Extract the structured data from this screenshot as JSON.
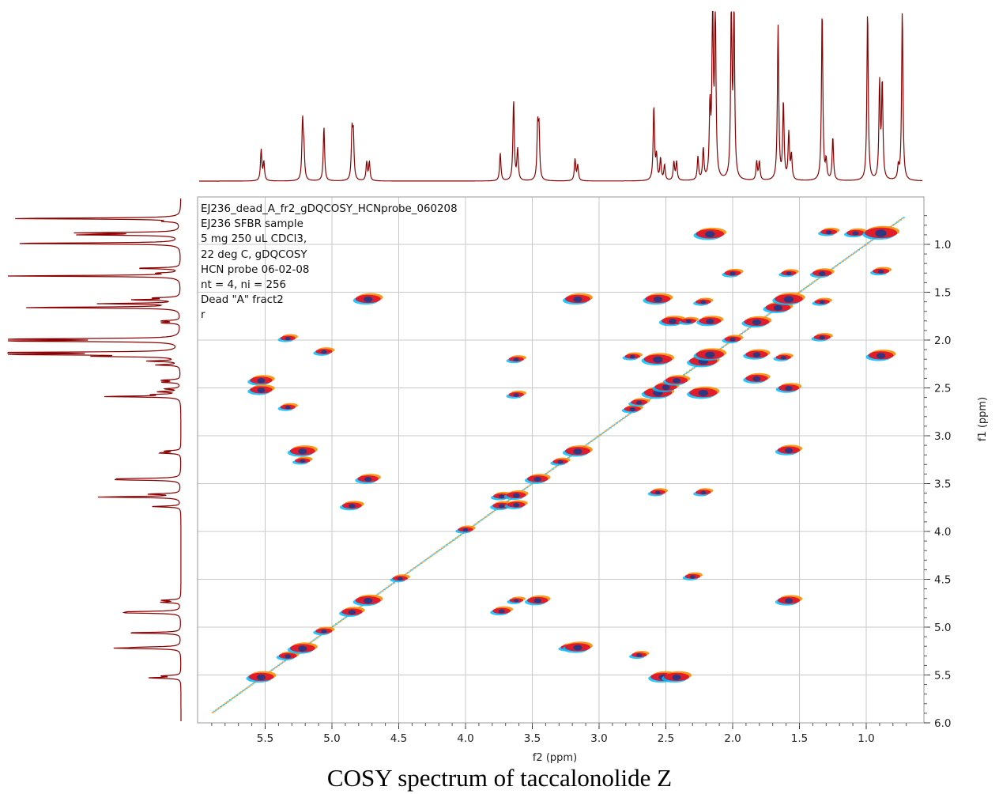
{
  "caption": "COSY spectrum of taccalonolide Z",
  "info_lines": [
    "EJ236_dead_A_fr2_gDQCOSY_HCNprobe_060208",
    "EJ236 SFBR sample",
    "5 mg 250 uL CDCl3,",
    "22 deg C, gDQCOSY",
    "HCN probe 06-02-08",
    "nt = 4, ni = 256",
    "Dead \"A\" fract2",
    "r"
  ],
  "colors": {
    "trace": "#8b0000",
    "grid": "#c8c8c8",
    "peak_cyan": "#00bfff",
    "peak_orange": "#ff8c00",
    "peak_red": "#e0102a",
    "peak_blue": "#1e3a8a"
  },
  "chart_data": {
    "type": "heatmap",
    "title": "",
    "xlabel": "f2 (ppm)",
    "ylabel": "f1 (ppm)",
    "xlim": [
      5.9,
      0.65
    ],
    "ylim": [
      5.95,
      0.65
    ],
    "x_reversed": true,
    "y_increases_down": true,
    "x_ticks": [
      "5.5",
      "5.0",
      "4.5",
      "4.0",
      "3.5",
      "3.0",
      "2.5",
      "2.0",
      "1.5",
      "1.0"
    ],
    "y_ticks": [
      "1.0",
      "1.5",
      "2.0",
      "2.5",
      "3.0",
      "3.5",
      "4.0",
      "4.5",
      "5.0",
      "5.5",
      "6.0"
    ],
    "grid": true,
    "projection_peaks": [
      {
        "ppm": 5.53,
        "h": 0.2
      },
      {
        "ppm": 5.51,
        "h": 0.12
      },
      {
        "ppm": 5.22,
        "h": 0.38
      },
      {
        "ppm": 5.21,
        "h": 0.18
      },
      {
        "ppm": 5.06,
        "h": 0.35
      },
      {
        "ppm": 4.85,
        "h": 0.3
      },
      {
        "ppm": 4.84,
        "h": 0.28
      },
      {
        "ppm": 4.74,
        "h": 0.12
      },
      {
        "ppm": 4.72,
        "h": 0.12
      },
      {
        "ppm": 3.74,
        "h": 0.18
      },
      {
        "ppm": 3.64,
        "h": 0.52
      },
      {
        "ppm": 3.61,
        "h": 0.2
      },
      {
        "ppm": 3.46,
        "h": 0.33
      },
      {
        "ppm": 3.45,
        "h": 0.32
      },
      {
        "ppm": 3.18,
        "h": 0.14
      },
      {
        "ppm": 3.16,
        "h": 0.1
      },
      {
        "ppm": 2.59,
        "h": 0.48
      },
      {
        "ppm": 2.57,
        "h": 0.15
      },
      {
        "ppm": 2.54,
        "h": 0.14
      },
      {
        "ppm": 2.51,
        "h": 0.1
      },
      {
        "ppm": 2.44,
        "h": 0.12
      },
      {
        "ppm": 2.42,
        "h": 0.12
      },
      {
        "ppm": 2.26,
        "h": 0.15
      },
      {
        "ppm": 2.22,
        "h": 0.2
      },
      {
        "ppm": 2.17,
        "h": 0.45
      },
      {
        "ppm": 2.15,
        "h": 1.1
      },
      {
        "ppm": 2.13,
        "h": 1.1
      },
      {
        "ppm": 2.01,
        "h": 1.1
      },
      {
        "ppm": 1.99,
        "h": 1.1
      },
      {
        "ppm": 1.82,
        "h": 0.12
      },
      {
        "ppm": 1.8,
        "h": 0.12
      },
      {
        "ppm": 1.66,
        "h": 1.0
      },
      {
        "ppm": 1.62,
        "h": 0.5
      },
      {
        "ppm": 1.58,
        "h": 0.3
      },
      {
        "ppm": 1.56,
        "h": 0.16
      },
      {
        "ppm": 1.33,
        "h": 1.1
      },
      {
        "ppm": 1.3,
        "h": 0.12
      },
      {
        "ppm": 1.25,
        "h": 0.28
      },
      {
        "ppm": 0.99,
        "h": 1.1
      },
      {
        "ppm": 0.9,
        "h": 0.62
      },
      {
        "ppm": 0.88,
        "h": 0.62
      },
      {
        "ppm": 0.76,
        "h": 0.08
      },
      {
        "ppm": 0.73,
        "h": 1.1
      }
    ],
    "cross_peaks": [
      {
        "x": 5.53,
        "y": 5.52,
        "s": 1.0
      },
      {
        "x": 5.53,
        "y": 2.42,
        "s": 0.8
      },
      {
        "x": 5.53,
        "y": 2.52,
        "s": 0.8
      },
      {
        "x": 5.33,
        "y": 5.3,
        "s": 0.5
      },
      {
        "x": 5.33,
        "y": 1.98,
        "s": 0.3
      },
      {
        "x": 5.33,
        "y": 2.7,
        "s": 0.3
      },
      {
        "x": 5.22,
        "y": 5.22,
        "s": 1.0
      },
      {
        "x": 5.22,
        "y": 3.16,
        "s": 1.0
      },
      {
        "x": 5.22,
        "y": 3.26,
        "s": 0.3
      },
      {
        "x": 5.06,
        "y": 5.04,
        "s": 0.4
      },
      {
        "x": 5.06,
        "y": 2.12,
        "s": 0.4
      },
      {
        "x": 4.85,
        "y": 4.84,
        "s": 0.7
      },
      {
        "x": 4.85,
        "y": 3.73,
        "s": 0.6
      },
      {
        "x": 4.73,
        "y": 4.72,
        "s": 1.0
      },
      {
        "x": 4.73,
        "y": 3.45,
        "s": 0.7
      },
      {
        "x": 4.73,
        "y": 1.57,
        "s": 1.0
      },
      {
        "x": 4.49,
        "y": 4.49,
        "s": 0.3
      },
      {
        "x": 4.0,
        "y": 3.98,
        "s": 0.3
      },
      {
        "x": 3.73,
        "y": 3.73,
        "s": 0.5
      },
      {
        "x": 3.73,
        "y": 3.63,
        "s": 0.4
      },
      {
        "x": 3.73,
        "y": 4.83,
        "s": 0.5
      },
      {
        "x": 3.62,
        "y": 3.62,
        "s": 0.6
      },
      {
        "x": 3.62,
        "y": 3.72,
        "s": 0.5
      },
      {
        "x": 3.62,
        "y": 2.57,
        "s": 0.3
      },
      {
        "x": 3.62,
        "y": 2.2,
        "s": 0.3
      },
      {
        "x": 3.62,
        "y": 4.72,
        "s": 0.2
      },
      {
        "x": 3.46,
        "y": 3.45,
        "s": 0.7
      },
      {
        "x": 3.46,
        "y": 4.72,
        "s": 0.7
      },
      {
        "x": 3.29,
        "y": 3.27,
        "s": 0.3
      },
      {
        "x": 3.23,
        "y": 5.21,
        "s": 0.3
      },
      {
        "x": 3.16,
        "y": 3.16,
        "s": 1.0
      },
      {
        "x": 3.16,
        "y": 5.21,
        "s": 1.0
      },
      {
        "x": 3.16,
        "y": 1.57,
        "s": 1.0
      },
      {
        "x": 2.75,
        "y": 2.72,
        "s": 0.4
      },
      {
        "x": 2.7,
        "y": 2.65,
        "s": 0.4
      },
      {
        "x": 2.75,
        "y": 2.17,
        "s": 0.3
      },
      {
        "x": 2.7,
        "y": 5.29,
        "s": 0.3
      },
      {
        "x": 2.56,
        "y": 2.55,
        "s": 1.2
      },
      {
        "x": 2.56,
        "y": 2.2,
        "s": 1.2
      },
      {
        "x": 2.56,
        "y": 1.57,
        "s": 1.0
      },
      {
        "x": 2.56,
        "y": 3.59,
        "s": 0.3
      },
      {
        "x": 2.5,
        "y": 2.49,
        "s": 0.8
      },
      {
        "x": 2.52,
        "y": 5.52,
        "s": 1.0
      },
      {
        "x": 2.42,
        "y": 5.52,
        "s": 1.0
      },
      {
        "x": 2.42,
        "y": 2.42,
        "s": 0.8
      },
      {
        "x": 2.45,
        "y": 1.8,
        "s": 0.8
      },
      {
        "x": 2.33,
        "y": 1.8,
        "s": 0.3
      },
      {
        "x": 2.3,
        "y": 4.47,
        "s": 0.3
      },
      {
        "x": 2.22,
        "y": 2.22,
        "s": 1.2
      },
      {
        "x": 2.22,
        "y": 2.55,
        "s": 1.2
      },
      {
        "x": 2.22,
        "y": 3.59,
        "s": 0.3
      },
      {
        "x": 2.22,
        "y": 1.6,
        "s": 0.3
      },
      {
        "x": 2.17,
        "y": 2.15,
        "s": 1.2
      },
      {
        "x": 2.17,
        "y": 0.89,
        "s": 1.2
      },
      {
        "x": 2.17,
        "y": 1.8,
        "s": 0.8
      },
      {
        "x": 2.0,
        "y": 1.99,
        "s": 0.4
      },
      {
        "x": 2.0,
        "y": 1.3,
        "s": 0.4
      },
      {
        "x": 1.82,
        "y": 1.81,
        "s": 1.0
      },
      {
        "x": 1.82,
        "y": 2.15,
        "s": 0.8
      },
      {
        "x": 1.82,
        "y": 2.4,
        "s": 0.8
      },
      {
        "x": 1.66,
        "y": 1.66,
        "s": 1.0
      },
      {
        "x": 1.62,
        "y": 2.18,
        "s": 0.3
      },
      {
        "x": 1.58,
        "y": 1.57,
        "s": 1.2
      },
      {
        "x": 1.58,
        "y": 2.5,
        "s": 0.7
      },
      {
        "x": 1.58,
        "y": 3.15,
        "s": 0.8
      },
      {
        "x": 1.58,
        "y": 4.72,
        "s": 0.8
      },
      {
        "x": 1.58,
        "y": 1.3,
        "s": 0.3
      },
      {
        "x": 1.33,
        "y": 1.3,
        "s": 0.6
      },
      {
        "x": 1.33,
        "y": 1.97,
        "s": 0.4
      },
      {
        "x": 1.33,
        "y": 1.6,
        "s": 0.3
      },
      {
        "x": 1.28,
        "y": 0.87,
        "s": 0.4
      },
      {
        "x": 1.08,
        "y": 0.88,
        "s": 0.5
      },
      {
        "x": 0.89,
        "y": 0.88,
        "s": 1.5
      },
      {
        "x": 0.89,
        "y": 2.16,
        "s": 1.0
      },
      {
        "x": 0.89,
        "y": 1.28,
        "s": 0.4
      }
    ],
    "diagonal_range": [
      5.9,
      0.72
    ]
  }
}
